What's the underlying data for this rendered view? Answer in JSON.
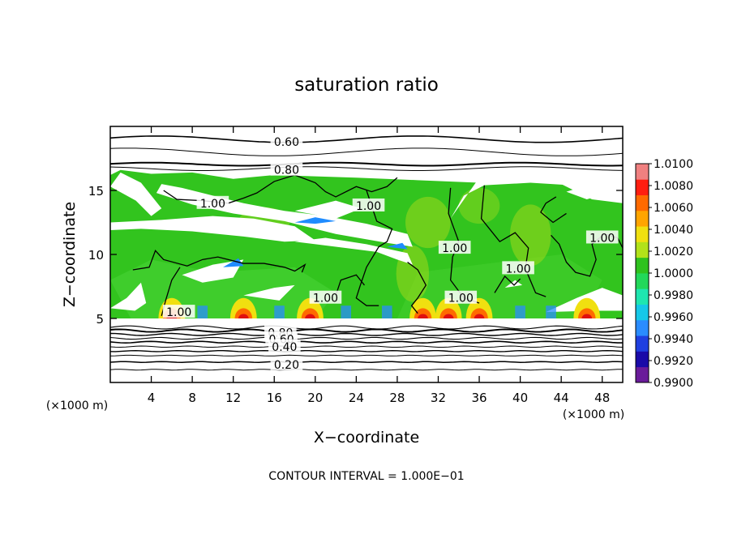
{
  "chart_data": {
    "type": "heatmap",
    "title": "saturation ratio",
    "xlabel": "X−coordinate",
    "ylabel": "Z−coordinate",
    "x_unit": "(×1000 m)",
    "z_unit": "(×1000 m)",
    "footnote": "CONTOUR INTERVAL = 1.000E−01",
    "xlim": [
      0,
      50
    ],
    "ylim": [
      0,
      20
    ],
    "x_ticks": [
      {
        "value": 4,
        "label": "4"
      },
      {
        "value": 8,
        "label": "8"
      },
      {
        "value": 12,
        "label": "12"
      },
      {
        "value": 16,
        "label": "16"
      },
      {
        "value": 20,
        "label": "20"
      },
      {
        "value": 24,
        "label": "24"
      },
      {
        "value": 28,
        "label": "28"
      },
      {
        "value": 32,
        "label": "32"
      },
      {
        "value": 36,
        "label": "36"
      },
      {
        "value": 40,
        "label": "40"
      },
      {
        "value": 44,
        "label": "44"
      },
      {
        "value": 48,
        "label": "48"
      }
    ],
    "y_ticks": [
      {
        "value": 5,
        "label": "5"
      },
      {
        "value": 10,
        "label": "10"
      },
      {
        "value": 15,
        "label": "15"
      }
    ],
    "colorbar": {
      "colors": [
        "#6a1b9a",
        "#1a0aa8",
        "#1f3fe0",
        "#2a8cff",
        "#15c8e8",
        "#1ee6b0",
        "#22d85a",
        "#2fc21e",
        "#b2e21a",
        "#f0e010",
        "#ffa500",
        "#ff6a00",
        "#ff1e10",
        "#f08080"
      ],
      "labels": [
        {
          "value": 0.99,
          "label": "0.9900"
        },
        {
          "value": 0.992,
          "label": "0.9920"
        },
        {
          "value": 0.994,
          "label": "0.9940"
        },
        {
          "value": 0.996,
          "label": "0.9960"
        },
        {
          "value": 0.998,
          "label": "0.9980"
        },
        {
          "value": 1.0,
          "label": "1.0000"
        },
        {
          "value": 1.002,
          "label": "1.0020"
        },
        {
          "value": 1.004,
          "label": "1.0040"
        },
        {
          "value": 1.006,
          "label": "1.0060"
        },
        {
          "value": 1.008,
          "label": "1.0080"
        },
        {
          "value": 1.01,
          "label": "1.0100"
        }
      ]
    },
    "contour_labels": [
      {
        "x": 17.2,
        "z": 18.8,
        "label": "0.60"
      },
      {
        "x": 17.2,
        "z": 16.6,
        "label": "0.80"
      },
      {
        "x": 10,
        "z": 14.0,
        "label": "1.00"
      },
      {
        "x": 25.2,
        "z": 13.8,
        "label": "1.00"
      },
      {
        "x": 33.6,
        "z": 10.5,
        "label": "1.00"
      },
      {
        "x": 39.8,
        "z": 8.9,
        "label": "1.00"
      },
      {
        "x": 48,
        "z": 11.3,
        "label": "1.00"
      },
      {
        "x": 6.7,
        "z": 5.5,
        "label": "1.00"
      },
      {
        "x": 21.0,
        "z": 6.6,
        "label": "1.00"
      },
      {
        "x": 34.2,
        "z": 6.6,
        "label": "1.00"
      },
      {
        "x": 16.6,
        "z": 3.9,
        "label": "0.80"
      },
      {
        "x": 16.7,
        "z": 3.4,
        "label": "0.60"
      },
      {
        "x": 17.0,
        "z": 2.8,
        "label": "0.40"
      },
      {
        "x": 17.2,
        "z": 1.4,
        "label": "0.20"
      }
    ],
    "grid": false,
    "legend_placement": "colorbar-right"
  }
}
